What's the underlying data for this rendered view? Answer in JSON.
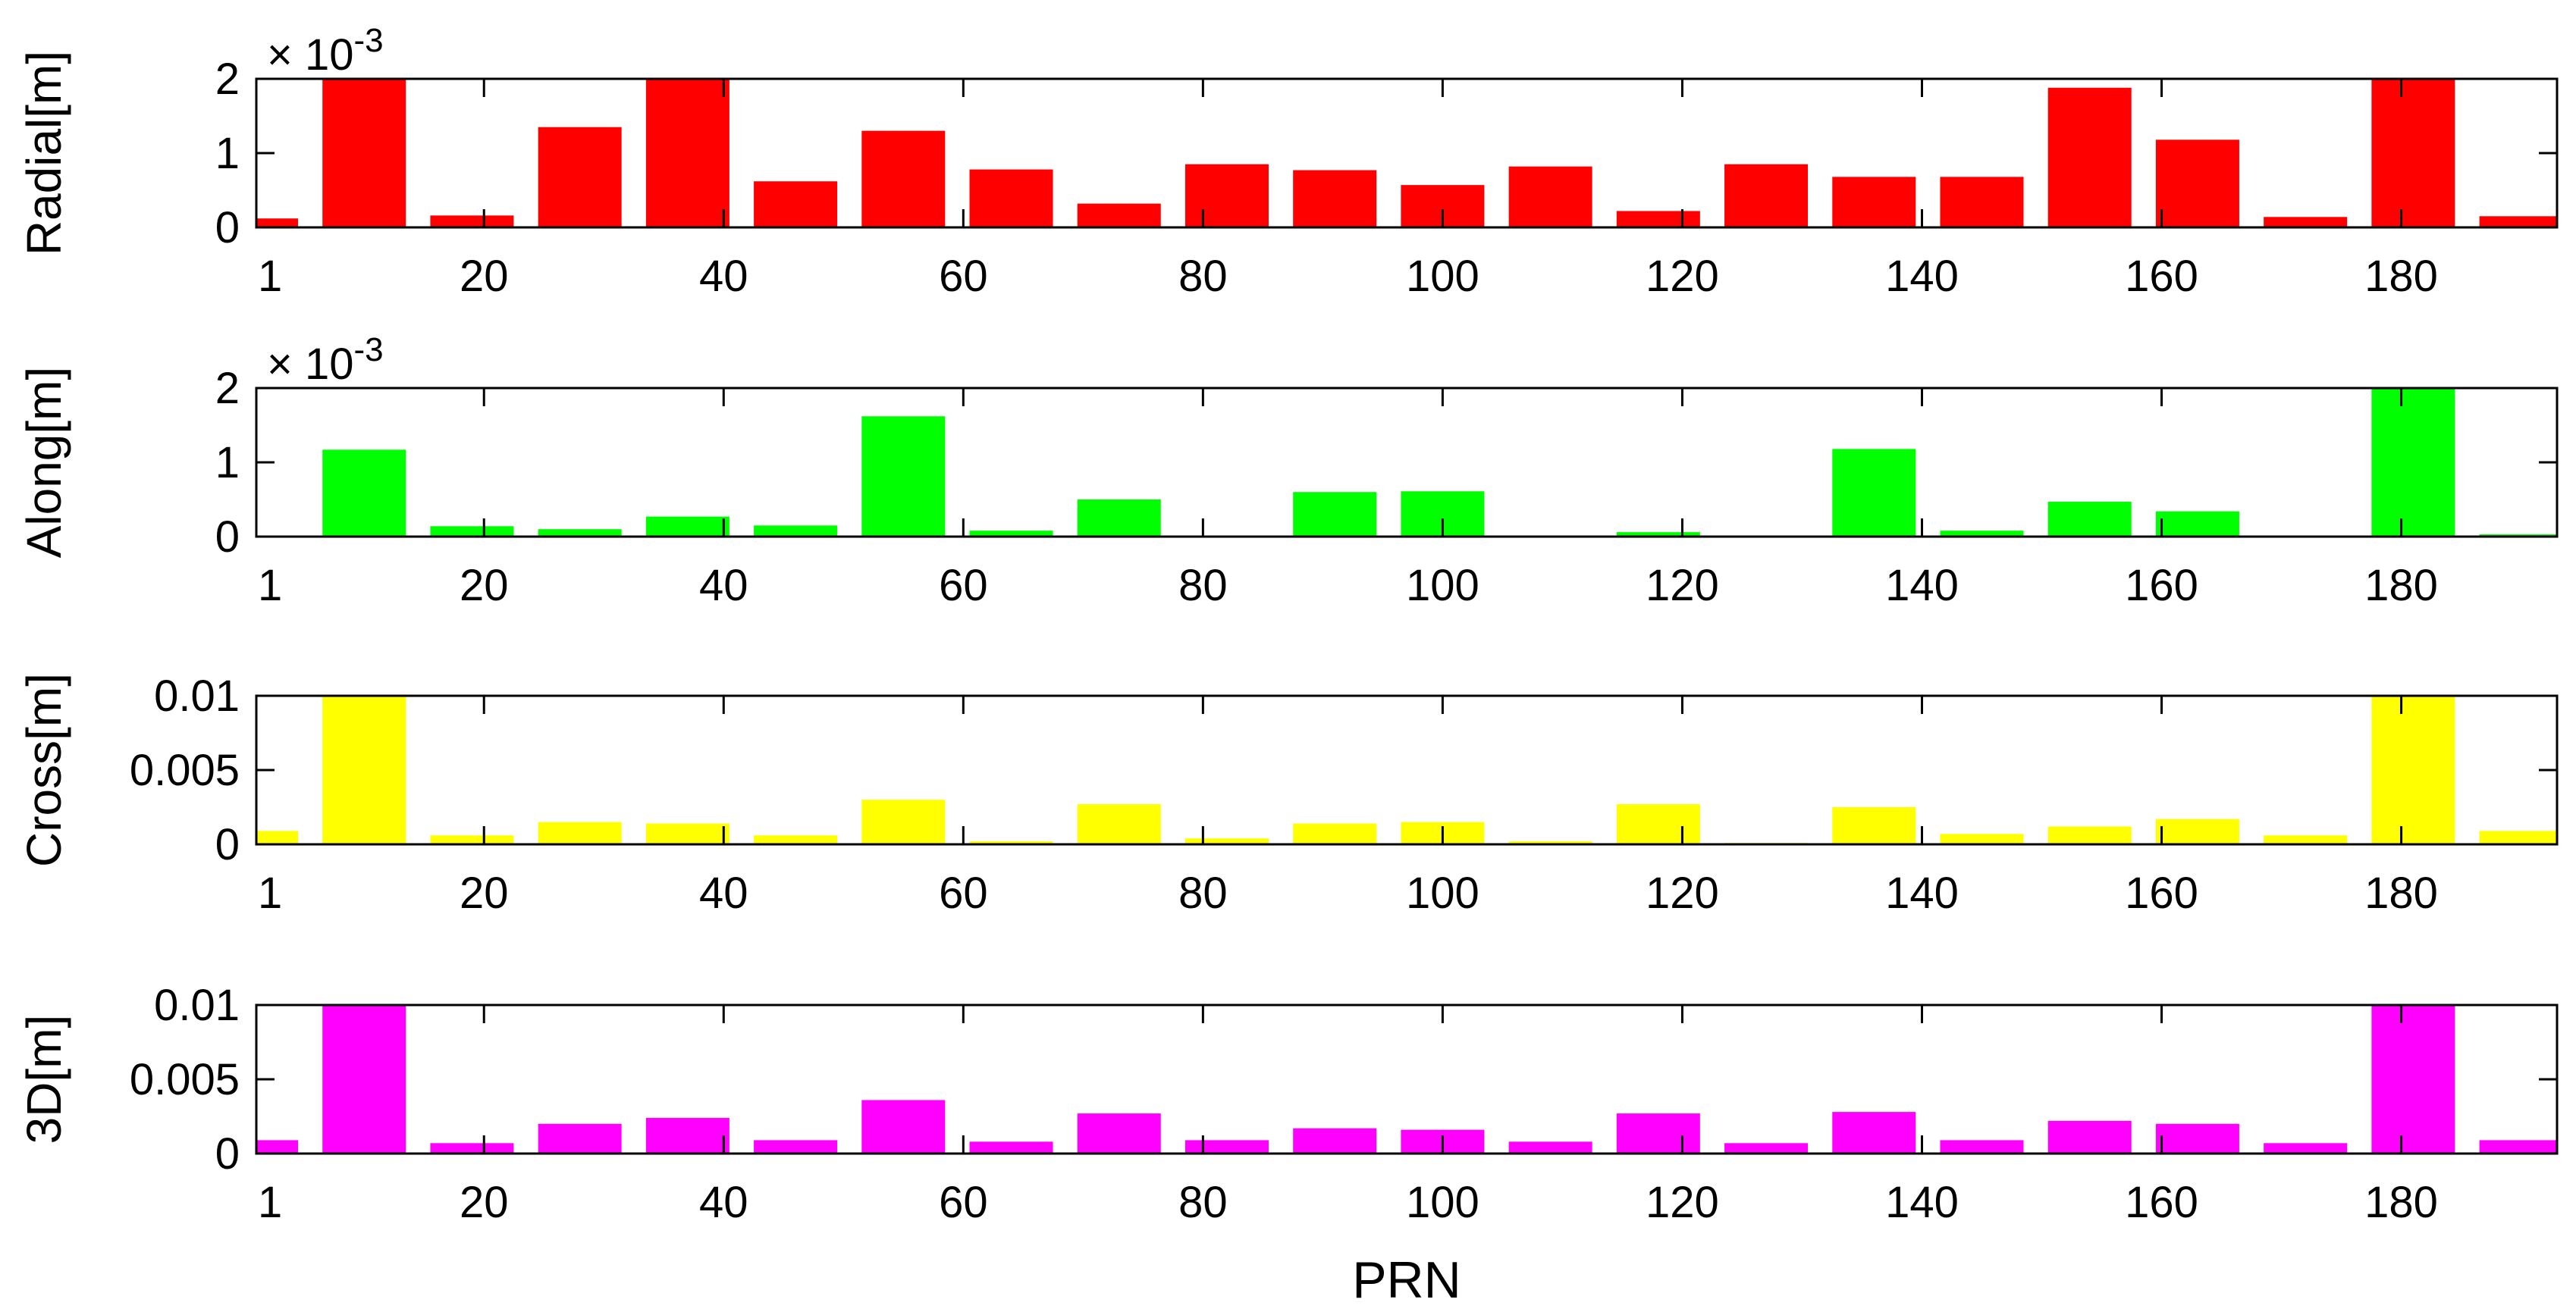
{
  "chart_data": {
    "type": "bar",
    "xlabel": "PRN",
    "xlim": [
      1,
      193
    ],
    "xticks": [
      1,
      20,
      40,
      60,
      80,
      100,
      120,
      140,
      160,
      180
    ],
    "categories": [
      1,
      10,
      19,
      28,
      37,
      46,
      55,
      64,
      73,
      82,
      91,
      100,
      109,
      118,
      127,
      136,
      145,
      154,
      163,
      172,
      181,
      190
    ],
    "panels": [
      {
        "ylabel": "Radial[m]",
        "color": "#ff0000",
        "ylim": [
          0,
          0.002
        ],
        "ytick_labels": [
          "0",
          "1",
          "2"
        ],
        "exponent": "-3",
        "values": [
          0.00012,
          0.002,
          0.00016,
          0.00135,
          0.002,
          0.00062,
          0.0013,
          0.00078,
          0.00032,
          0.00085,
          0.00077,
          0.00057,
          0.00082,
          0.00022,
          0.00085,
          0.00068,
          0.00068,
          0.00188,
          0.00118,
          0.00014,
          0.002,
          0.00015
        ]
      },
      {
        "ylabel": "Along[m]",
        "color": "#00ff00",
        "ylim": [
          0,
          0.002
        ],
        "ytick_labels": [
          "0",
          "1",
          "2"
        ],
        "exponent": "-3",
        "values": [
          0,
          0.00117,
          0.00014,
          0.0001,
          0.00027,
          0.00015,
          0.00162,
          8e-05,
          0.0005,
          0,
          0.0006,
          0.00061,
          0,
          6e-05,
          0,
          0.00118,
          8e-05,
          0.00047,
          0.00034,
          0,
          0.002,
          3e-05
        ]
      },
      {
        "ylabel": "Cross[m]",
        "color": "#ffff00",
        "ylim": [
          0,
          0.01
        ],
        "ytick_labels": [
          "0",
          "0.005",
          "0.01"
        ],
        "exponent": "",
        "values": [
          0.0009,
          0.01,
          0.0006,
          0.0015,
          0.0014,
          0.0006,
          0.003,
          0.0002,
          0.0027,
          0.0004,
          0.0014,
          0.0015,
          0.0002,
          0.0027,
          0.0001,
          0.0025,
          0.0007,
          0.0012,
          0.0017,
          0.0006,
          0.01,
          0.0009
        ]
      },
      {
        "ylabel": "3D[m]",
        "color": "#ff00ff",
        "ylim": [
          0,
          0.01
        ],
        "ytick_labels": [
          "0",
          "0.005",
          "0.01"
        ],
        "exponent": "",
        "values": [
          0.0009,
          0.01,
          0.0007,
          0.002,
          0.0024,
          0.0009,
          0.0036,
          0.0008,
          0.0027,
          0.0009,
          0.0017,
          0.0016,
          0.0008,
          0.0027,
          0.0007,
          0.0028,
          0.0009,
          0.0022,
          0.002,
          0.0007,
          0.01,
          0.0009
        ]
      }
    ]
  }
}
